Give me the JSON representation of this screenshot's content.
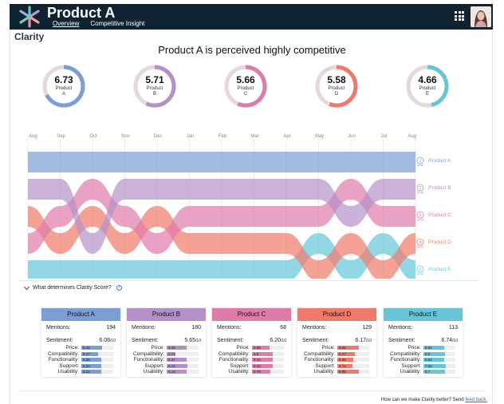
{
  "app": {
    "title": "Product A",
    "brand": "Clarity",
    "nav": [
      "Overview",
      "Competitive Insight"
    ]
  },
  "headline": "Product A is perceived highly competitive",
  "products": [
    {
      "name": "Product A",
      "label_line1": "Product",
      "label_line2": "A",
      "score": "6.73",
      "score_value": 6.73,
      "color": "#7b9fd4"
    },
    {
      "name": "Product B",
      "label_line1": "Product",
      "label_line2": "B",
      "score": "5.71",
      "score_value": 5.71,
      "color": "#b391c8"
    },
    {
      "name": "Product C",
      "label_line1": "Product",
      "label_line2": "C",
      "score": "5.66",
      "score_value": 5.66,
      "color": "#e07aaa"
    },
    {
      "name": "Product D",
      "label_line1": "Product",
      "label_line2": "D",
      "score": "5.58",
      "score_value": 5.58,
      "color": "#f07a6a"
    },
    {
      "name": "Product E",
      "label_line1": "Product",
      "label_line2": "E",
      "score": "4.66",
      "score_value": 4.66,
      "color": "#66c6d8"
    }
  ],
  "chart_data": {
    "type": "area",
    "x": [
      "Aug",
      "Sep",
      "Oct",
      "Nov",
      "Dec",
      "Jan",
      "Feb",
      "Mar",
      "Apr",
      "May",
      "Jun",
      "Jul",
      "Aug"
    ],
    "series": [
      {
        "name": "Product A",
        "rank_label": "1",
        "ranks": [
          1,
          1,
          1,
          1,
          1,
          1,
          1,
          1,
          1,
          1,
          1,
          1,
          1
        ]
      },
      {
        "name": "Product B",
        "rank_label": "2",
        "ranks": [
          2,
          2,
          4,
          2,
          2,
          2,
          2,
          2,
          2,
          2,
          3,
          2,
          2
        ]
      },
      {
        "name": "Product C",
        "rank_label": "3",
        "ranks": [
          4,
          3,
          2,
          3,
          4,
          3,
          3,
          3,
          3,
          3,
          2,
          3,
          3
        ]
      },
      {
        "name": "Product D",
        "rank_label": "4",
        "ranks": [
          3,
          4,
          3,
          4,
          3,
          4,
          4,
          4,
          4,
          5,
          4,
          5,
          4
        ]
      },
      {
        "name": "Product E",
        "rank_label": "5",
        "ranks": [
          5,
          5,
          5,
          5,
          5,
          5,
          5,
          5,
          5,
          4,
          5,
          4,
          5
        ]
      }
    ]
  },
  "section_label": "What determines Clarity Score?",
  "card_labels": {
    "mentions": "Mentions:",
    "sentiment": "Sentiment:",
    "per10": "/10",
    "metrics": [
      "Price:",
      "Compatibility:",
      "Functionality:",
      "Support:",
      "Usability:"
    ]
  },
  "cards": [
    {
      "name": "Product A",
      "mentions": "194",
      "sentiment": "6.08",
      "metrics": [
        "6.48",
        "5.17",
        "6.25",
        "6.26",
        "6.14"
      ]
    },
    {
      "name": "Product B",
      "mentions": "180",
      "sentiment": "5.65",
      "metrics": [
        "6.26",
        "2.71",
        "6.37",
        "6.42",
        "6.13"
      ]
    },
    {
      "name": "Product C",
      "mentions": "68",
      "sentiment": "6.20",
      "metrics": [
        "5.56",
        "6.6",
        "6.44",
        "6.43",
        "5.79"
      ]
    },
    {
      "name": "Product D",
      "mentions": "129",
      "sentiment": "6.17",
      "metrics": [
        "6.66",
        "5.47",
        "5.05",
        "4.74",
        "6.85"
      ]
    },
    {
      "name": "Product E",
      "mentions": "113",
      "sentiment": "6.74",
      "metrics": [
        "6.58",
        "6.8",
        "6.62",
        "7.02",
        "6.7"
      ]
    }
  ],
  "feedback": {
    "text": "How can we make Clarity better? Send ",
    "link": "feed back."
  }
}
